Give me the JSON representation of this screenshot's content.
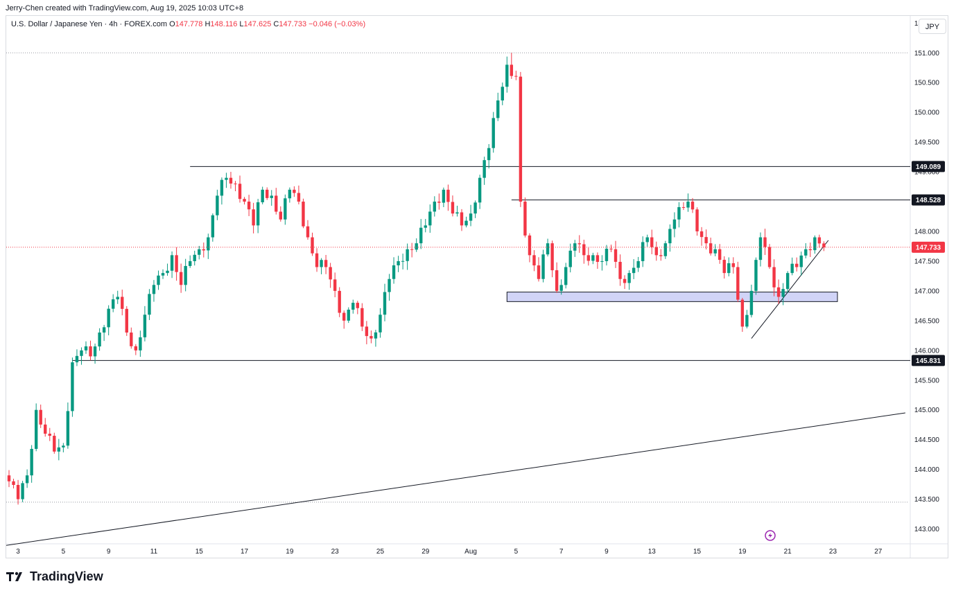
{
  "header": {
    "credit": "Jerry-Chen created with TradingView.com, Aug 19, 2025 10:03 UTC+8"
  },
  "legend": {
    "symbol": "U.S. Dollar / Japanese Yen · 4h · FOREX.com",
    "o_label": "O",
    "o_value": "147.778",
    "h_label": "H",
    "h_value": "148.116",
    "l_label": "L",
    "l_value": "147.625",
    "c_label": "C",
    "c_value": "147.733",
    "change": "−0.046 (−0.03%)"
  },
  "currency_button": "JPY",
  "footer": {
    "brand": "TradingView"
  },
  "colors": {
    "up": "#089981",
    "down": "#f23645",
    "zone": "#d1d4f7",
    "line": "#131722",
    "price_line": "#f23645"
  },
  "chart_data": {
    "type": "candlestick",
    "timeframe": "4h",
    "ylim": [
      142.75,
      151.62
    ],
    "y_ticks": [
      "143.000",
      "143.500",
      "144.000",
      "144.500",
      "145.000",
      "145.500",
      "146.000",
      "146.500",
      "147.000",
      "147.500",
      "148.000",
      "148.500",
      "149.000",
      "149.500",
      "150.000",
      "150.500",
      "151.000",
      "151.500"
    ],
    "x_ticks": [
      "3",
      "5",
      "9",
      "11",
      "15",
      "17",
      "19",
      "23",
      "25",
      "29",
      "Aug",
      "5",
      "7",
      "9",
      "13",
      "15",
      "19",
      "21",
      "23",
      "27"
    ],
    "session_index_range": [
      0,
      197
    ],
    "x_tick_index": [
      2,
      12,
      22,
      32,
      42,
      52,
      62,
      72,
      82,
      92,
      102,
      112,
      122,
      132,
      142,
      152,
      162,
      172,
      182,
      192
    ],
    "close_anchors": [
      [
        0,
        143.8
      ],
      [
        2,
        143.5
      ],
      [
        4,
        143.9
      ],
      [
        6,
        145.0
      ],
      [
        8,
        144.6
      ],
      [
        10,
        144.3
      ],
      [
        12,
        144.4
      ],
      [
        14,
        145.8
      ],
      [
        16,
        146.0
      ],
      [
        18,
        145.9
      ],
      [
        20,
        146.3
      ],
      [
        22,
        146.7
      ],
      [
        24,
        146.9
      ],
      [
        26,
        146.3
      ],
      [
        28,
        146.0
      ],
      [
        30,
        146.6
      ],
      [
        32,
        147.1
      ],
      [
        34,
        147.3
      ],
      [
        36,
        147.6
      ],
      [
        38,
        147.1
      ],
      [
        40,
        147.5
      ],
      [
        42,
        147.7
      ],
      [
        44,
        147.9
      ],
      [
        46,
        148.6
      ],
      [
        48,
        148.9
      ],
      [
        50,
        148.8
      ],
      [
        52,
        148.5
      ],
      [
        54,
        148.1
      ],
      [
        56,
        148.7
      ],
      [
        58,
        148.6
      ],
      [
        60,
        148.2
      ],
      [
        62,
        148.7
      ],
      [
        64,
        148.5
      ],
      [
        66,
        147.9
      ],
      [
        68,
        147.4
      ],
      [
        70,
        147.4
      ],
      [
        72,
        147.0
      ],
      [
        74,
        146.5
      ],
      [
        76,
        146.8
      ],
      [
        78,
        146.4
      ],
      [
        80,
        146.2
      ],
      [
        82,
        146.6
      ],
      [
        84,
        147.2
      ],
      [
        86,
        147.5
      ],
      [
        88,
        147.7
      ],
      [
        90,
        147.8
      ],
      [
        92,
        148.1
      ],
      [
        94,
        148.5
      ],
      [
        96,
        148.7
      ],
      [
        98,
        148.3
      ],
      [
        100,
        148.1
      ],
      [
        102,
        148.3
      ],
      [
        104,
        148.9
      ],
      [
        106,
        149.4
      ],
      [
        108,
        150.2
      ],
      [
        110,
        150.8
      ],
      [
        112,
        150.6
      ],
      [
        113,
        148.5
      ],
      [
        115,
        147.6
      ],
      [
        117,
        147.2
      ],
      [
        119,
        147.8
      ],
      [
        121,
        147.0
      ],
      [
        123,
        147.4
      ],
      [
        125,
        147.8
      ],
      [
        127,
        147.6
      ],
      [
        129,
        147.6
      ],
      [
        131,
        147.5
      ],
      [
        133,
        147.7
      ],
      [
        135,
        147.2
      ],
      [
        137,
        147.3
      ],
      [
        139,
        147.5
      ],
      [
        141,
        147.9
      ],
      [
        143,
        147.6
      ],
      [
        145,
        147.8
      ],
      [
        147,
        148.2
      ],
      [
        149,
        148.4
      ],
      [
        150,
        148.5
      ],
      [
        152,
        148.0
      ],
      [
        154,
        147.8
      ],
      [
        156,
        147.7
      ],
      [
        158,
        147.3
      ],
      [
        160,
        147.4
      ],
      [
        162,
        146.4
      ],
      [
        164,
        147.0
      ],
      [
        166,
        147.9
      ],
      [
        168,
        147.4
      ],
      [
        170,
        146.9
      ],
      [
        172,
        147.3
      ],
      [
        174,
        147.4
      ],
      [
        176,
        147.7
      ],
      [
        178,
        147.9
      ],
      [
        180,
        147.73
      ]
    ],
    "extremes": {
      "high": 151.0,
      "high_index": 111,
      "low": 143.45,
      "low_index": 3
    },
    "horizontal_levels": [
      {
        "price": 149.089,
        "label": "149.089",
        "from_index": 40
      },
      {
        "price": 148.528,
        "label": "148.528",
        "from_index": 111
      },
      {
        "price": 145.831,
        "label": "145.831",
        "from_index": 14
      }
    ],
    "dotted_levels": [
      151.0,
      143.45
    ],
    "current_price": {
      "price": 147.733,
      "label": "147.733"
    },
    "zone": {
      "top": 146.98,
      "bottom": 146.82,
      "from_index": 110,
      "to_index": 183
    },
    "trendlines": [
      {
        "from": [
          -1,
          142.72
        ],
        "to": [
          198,
          144.95
        ]
      },
      {
        "from": [
          164,
          146.2
        ],
        "to": [
          181,
          147.85
        ]
      }
    ]
  }
}
